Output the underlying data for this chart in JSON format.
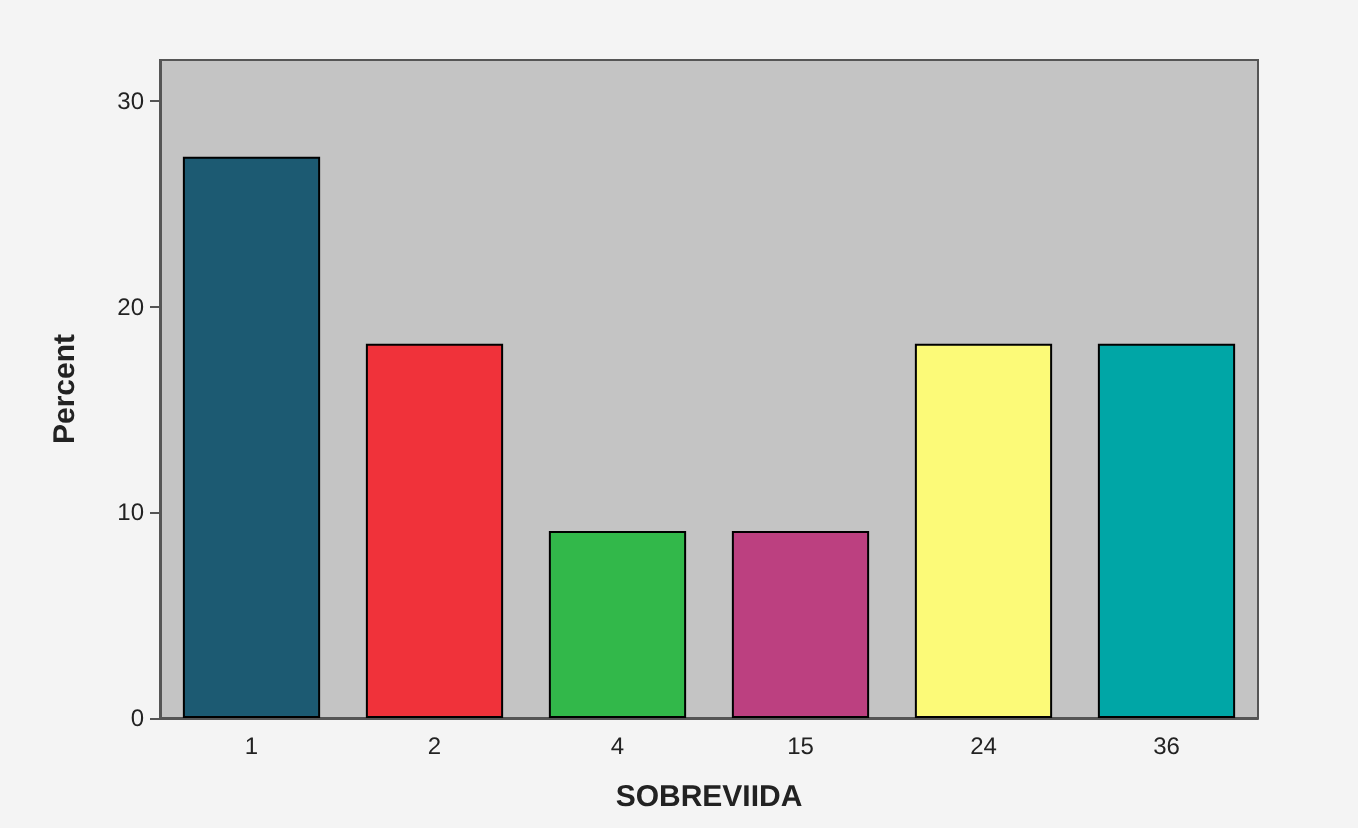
{
  "chart_data": {
    "type": "bar",
    "xlabel": "SOBREVIIDA",
    "ylabel": "Percent",
    "categories": [
      "1",
      "2",
      "4",
      "15",
      "24",
      "36"
    ],
    "values": [
      27.3,
      18.2,
      9.1,
      9.1,
      18.2,
      18.2
    ],
    "colors": [
      "#1c5a72",
      "#f0323a",
      "#32b84a",
      "#bc4080",
      "#fcfa78",
      "#00a6a6"
    ],
    "ylim": [
      0,
      32
    ],
    "yticks": [
      0,
      10,
      20,
      30
    ],
    "grid": false
  }
}
